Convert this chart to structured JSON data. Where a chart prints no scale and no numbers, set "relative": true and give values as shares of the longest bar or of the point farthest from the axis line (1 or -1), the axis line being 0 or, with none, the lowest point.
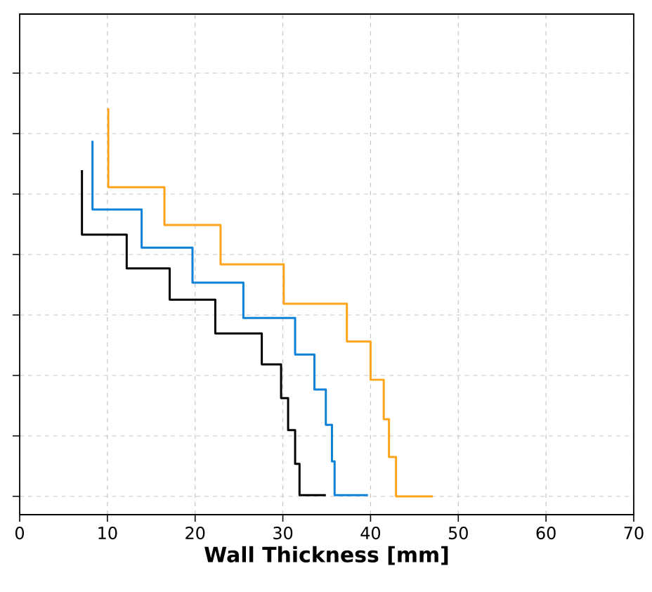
{
  "chart_data": {
    "type": "line",
    "xlabel": "Wall Thickness [mm]",
    "relative": true,
    "grid": true,
    "marker": "none",
    "line_style": "solid",
    "xlim": [
      0,
      70
    ],
    "xticks": [
      0,
      10,
      20,
      30,
      40,
      50,
      60,
      70
    ],
    "series": [
      {
        "color": "#000000",
        "x": [
          7.1,
          7.1,
          12.2,
          12.2,
          17.1,
          17.1,
          22.3,
          22.3,
          27.6,
          27.6,
          29.8,
          29.8,
          30.6,
          30.6,
          31.4,
          31.4,
          31.9,
          31.9,
          34.9
        ],
        "values": [
          0.848,
          0.689,
          0.689,
          0.606,
          0.606,
          0.529,
          0.529,
          0.446,
          0.446,
          0.37,
          0.37,
          0.287,
          0.287,
          0.208,
          0.208,
          0.125,
          0.125,
          0.048,
          0.048
        ]
      },
      {
        "color": "#0d80d8",
        "x": [
          8.3,
          8.3,
          13.9,
          13.9,
          19.7,
          19.7,
          25.5,
          25.5,
          31.4,
          31.4,
          33.6,
          33.6,
          34.9,
          34.9,
          35.6,
          35.6,
          35.9,
          35.9,
          39.7
        ],
        "values": [
          0.92,
          0.751,
          0.751,
          0.657,
          0.657,
          0.571,
          0.571,
          0.484,
          0.484,
          0.394,
          0.394,
          0.308,
          0.308,
          0.221,
          0.221,
          0.131,
          0.131,
          0.048,
          0.048
        ]
      },
      {
        "color": "#ffa41b",
        "x": [
          10.1,
          10.1,
          16.5,
          16.5,
          22.9,
          22.9,
          30.1,
          30.1,
          37.3,
          37.3,
          40.0,
          40.0,
          41.5,
          41.5,
          42.1,
          42.1,
          42.9,
          42.9,
          47.1
        ],
        "values": [
          1,
          0.806,
          0.806,
          0.713,
          0.713,
          0.616,
          0.616,
          0.519,
          0.519,
          0.426,
          0.426,
          0.332,
          0.332,
          0.235,
          0.235,
          0.142,
          0.142,
          0.045,
          0.045
        ]
      }
    ]
  }
}
